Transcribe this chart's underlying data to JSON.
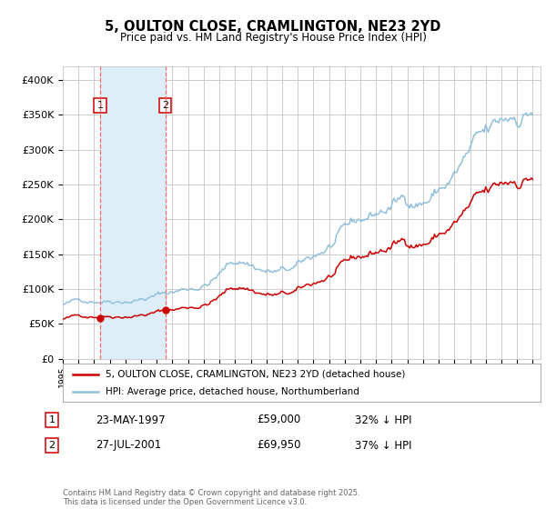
{
  "title1": "5, OULTON CLOSE, CRAMLINGTON, NE23 2YD",
  "title2": "Price paid vs. HM Land Registry's House Price Index (HPI)",
  "legend_line1": "5, OULTON CLOSE, CRAMLINGTON, NE23 2YD (detached house)",
  "legend_line2": "HPI: Average price, detached house, Northumberland",
  "sale1_date": "23-MAY-1997",
  "sale1_price": 59000,
  "sale1_label": "32% ↓ HPI",
  "sale2_date": "27-JUL-2001",
  "sale2_price": 69950,
  "sale2_label": "37% ↓ HPI",
  "footer": "Contains HM Land Registry data © Crown copyright and database right 2025.\nThis data is licensed under the Open Government Licence v3.0.",
  "hpi_color": "#92C0DC",
  "price_color": "#CC0000",
  "sale_marker_color": "#CC0000",
  "vspan_color": "#DDEEF8",
  "vline_color": "#FF6666",
  "grid_color": "#CCCCCC",
  "bg_color": "#FFFFFF",
  "ylim": [
    0,
    420000
  ],
  "yticks": [
    0,
    50000,
    100000,
    150000,
    200000,
    250000,
    300000,
    350000,
    400000
  ],
  "x_start_year": 1995,
  "x_end_year": 2025,
  "sale1_year": 1997.38,
  "sale2_year": 2001.55
}
